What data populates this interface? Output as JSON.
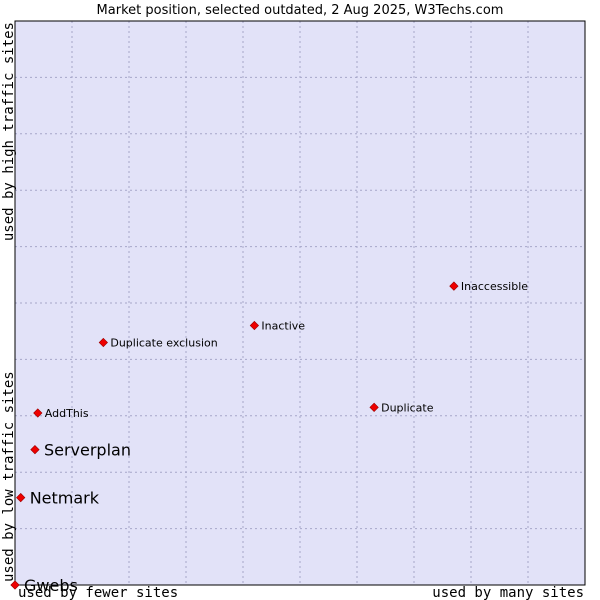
{
  "chart_data": {
    "type": "scatter",
    "title": "Market position, selected outdated, 2 Aug 2025, W3Techs.com",
    "xlabel_left": "used by fewer sites",
    "xlabel_right": "used by many sites",
    "ylabel_bottom": "used by low traffic sites",
    "ylabel_top": "used by high traffic sites",
    "xlim": [
      0,
      100
    ],
    "ylim": [
      0,
      100
    ],
    "grid": true,
    "points": [
      {
        "label": "Gwebs",
        "x": 0.0,
        "y": 0.0,
        "emphasis": "large"
      },
      {
        "label": "Netmark",
        "x": 1.0,
        "y": 15.5,
        "emphasis": "large"
      },
      {
        "label": "Serverplan",
        "x": 3.5,
        "y": 24.0,
        "emphasis": "large"
      },
      {
        "label": "AddThis",
        "x": 4.0,
        "y": 30.5,
        "emphasis": "small"
      },
      {
        "label": "Duplicate exclusion",
        "x": 15.5,
        "y": 43.0,
        "emphasis": "small"
      },
      {
        "label": "Inactive",
        "x": 42.0,
        "y": 46.0,
        "emphasis": "small"
      },
      {
        "label": "Duplicate",
        "x": 63.0,
        "y": 31.5,
        "emphasis": "small"
      },
      {
        "label": "Inaccessible",
        "x": 77.0,
        "y": 53.0,
        "emphasis": "small"
      }
    ],
    "colors": {
      "plot_background": "#e2e2f8",
      "grid": "#a6a6c9",
      "marker": "#ee0000",
      "frame": "#000000"
    }
  }
}
